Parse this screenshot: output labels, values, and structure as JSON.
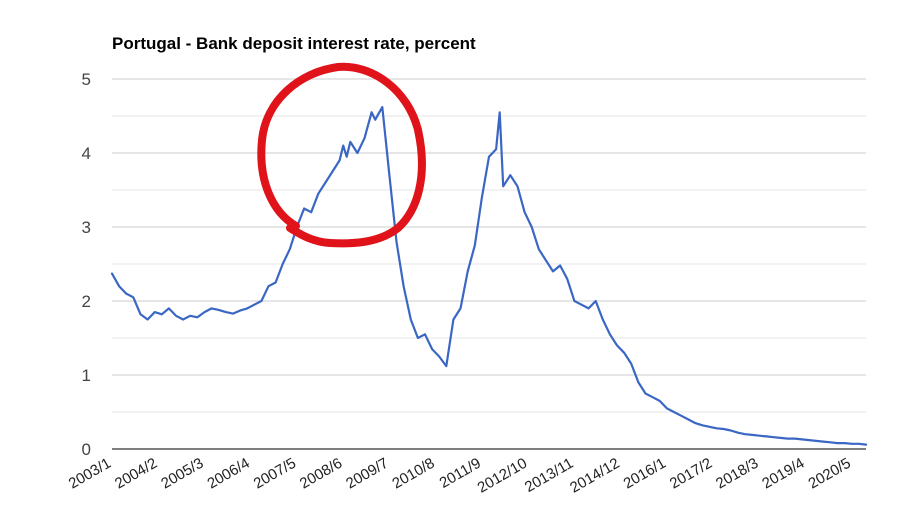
{
  "chart_data": {
    "type": "line",
    "title": "Portugal - Bank deposit interest rate, percent",
    "xlabel": "",
    "ylabel": "",
    "ylim": [
      0,
      5
    ],
    "yticks": [
      0,
      1,
      2,
      3,
      4,
      5
    ],
    "grid": true,
    "legend": "none",
    "x_tick_labels": [
      "2003/1",
      "2004/2",
      "2005/3",
      "2006/4",
      "2007/5",
      "2008/6",
      "2009/7",
      "2010/8",
      "2011/9",
      "2012/10",
      "2013/11",
      "2014/12",
      "2016/1",
      "2017/2",
      "2018/3",
      "2019/4",
      "2020/5"
    ],
    "series": [
      {
        "color": "#3a66c4",
        "points": [
          [
            "2003-01",
            2.37
          ],
          [
            "2003-03",
            2.2
          ],
          [
            "2003-05",
            2.1
          ],
          [
            "2003-07",
            2.05
          ],
          [
            "2003-09",
            1.82
          ],
          [
            "2003-11",
            1.75
          ],
          [
            "2004-01",
            1.85
          ],
          [
            "2004-03",
            1.82
          ],
          [
            "2004-05",
            1.9
          ],
          [
            "2004-07",
            1.8
          ],
          [
            "2004-09",
            1.75
          ],
          [
            "2004-11",
            1.8
          ],
          [
            "2005-01",
            1.78
          ],
          [
            "2005-03",
            1.85
          ],
          [
            "2005-05",
            1.9
          ],
          [
            "2005-07",
            1.88
          ],
          [
            "2005-09",
            1.85
          ],
          [
            "2005-11",
            1.83
          ],
          [
            "2006-01",
            1.87
          ],
          [
            "2006-03",
            1.9
          ],
          [
            "2006-05",
            1.95
          ],
          [
            "2006-07",
            2.0
          ],
          [
            "2006-09",
            2.2
          ],
          [
            "2006-11",
            2.25
          ],
          [
            "2007-01",
            2.5
          ],
          [
            "2007-03",
            2.7
          ],
          [
            "2007-05",
            3.0
          ],
          [
            "2007-07",
            3.25
          ],
          [
            "2007-09",
            3.2
          ],
          [
            "2007-11",
            3.45
          ],
          [
            "2008-01",
            3.6
          ],
          [
            "2008-03",
            3.75
          ],
          [
            "2008-05",
            3.9
          ],
          [
            "2008-06",
            4.1
          ],
          [
            "2008-07",
            3.95
          ],
          [
            "2008-08",
            4.15
          ],
          [
            "2008-10",
            4.0
          ],
          [
            "2008-12",
            4.2
          ],
          [
            "2009-02",
            4.55
          ],
          [
            "2009-03",
            4.45
          ],
          [
            "2009-05",
            4.62
          ],
          [
            "2009-07",
            3.7
          ],
          [
            "2009-09",
            2.8
          ],
          [
            "2009-11",
            2.2
          ],
          [
            "2010-01",
            1.75
          ],
          [
            "2010-03",
            1.5
          ],
          [
            "2010-05",
            1.55
          ],
          [
            "2010-07",
            1.35
          ],
          [
            "2010-09",
            1.25
          ],
          [
            "2010-11",
            1.12
          ],
          [
            "2011-01",
            1.75
          ],
          [
            "2011-03",
            1.9
          ],
          [
            "2011-05",
            2.4
          ],
          [
            "2011-07",
            2.75
          ],
          [
            "2011-09",
            3.4
          ],
          [
            "2011-11",
            3.95
          ],
          [
            "2012-01",
            4.05
          ],
          [
            "2012-02",
            4.55
          ],
          [
            "2012-03",
            3.55
          ],
          [
            "2012-05",
            3.7
          ],
          [
            "2012-07",
            3.55
          ],
          [
            "2012-09",
            3.2
          ],
          [
            "2012-11",
            3.0
          ],
          [
            "2013-01",
            2.7
          ],
          [
            "2013-03",
            2.55
          ],
          [
            "2013-05",
            2.4
          ],
          [
            "2013-07",
            2.48
          ],
          [
            "2013-09",
            2.3
          ],
          [
            "2013-11",
            2.0
          ],
          [
            "2014-01",
            1.95
          ],
          [
            "2014-03",
            1.9
          ],
          [
            "2014-05",
            2.0
          ],
          [
            "2014-07",
            1.75
          ],
          [
            "2014-09",
            1.55
          ],
          [
            "2014-11",
            1.4
          ],
          [
            "2015-01",
            1.3
          ],
          [
            "2015-03",
            1.15
          ],
          [
            "2015-05",
            0.9
          ],
          [
            "2015-07",
            0.75
          ],
          [
            "2015-09",
            0.7
          ],
          [
            "2015-11",
            0.65
          ],
          [
            "2016-01",
            0.55
          ],
          [
            "2016-03",
            0.5
          ],
          [
            "2016-05",
            0.45
          ],
          [
            "2016-07",
            0.4
          ],
          [
            "2016-09",
            0.35
          ],
          [
            "2016-11",
            0.32
          ],
          [
            "2017-01",
            0.3
          ],
          [
            "2017-03",
            0.28
          ],
          [
            "2017-05",
            0.27
          ],
          [
            "2017-07",
            0.25
          ],
          [
            "2017-09",
            0.22
          ],
          [
            "2017-11",
            0.2
          ],
          [
            "2018-01",
            0.19
          ],
          [
            "2018-03",
            0.18
          ],
          [
            "2018-05",
            0.17
          ],
          [
            "2018-07",
            0.16
          ],
          [
            "2018-09",
            0.15
          ],
          [
            "2018-11",
            0.14
          ],
          [
            "2019-01",
            0.14
          ],
          [
            "2019-03",
            0.13
          ],
          [
            "2019-05",
            0.12
          ],
          [
            "2019-07",
            0.11
          ],
          [
            "2019-09",
            0.1
          ],
          [
            "2019-11",
            0.09
          ],
          [
            "2020-01",
            0.08
          ],
          [
            "2020-03",
            0.08
          ],
          [
            "2020-05",
            0.07
          ],
          [
            "2020-07",
            0.07
          ],
          [
            "2020-09",
            0.06
          ]
        ]
      }
    ]
  },
  "annotation": {
    "type": "circle",
    "color": "#e0131b",
    "description": "hand-drawn circle around the 2007-2009 peak"
  }
}
